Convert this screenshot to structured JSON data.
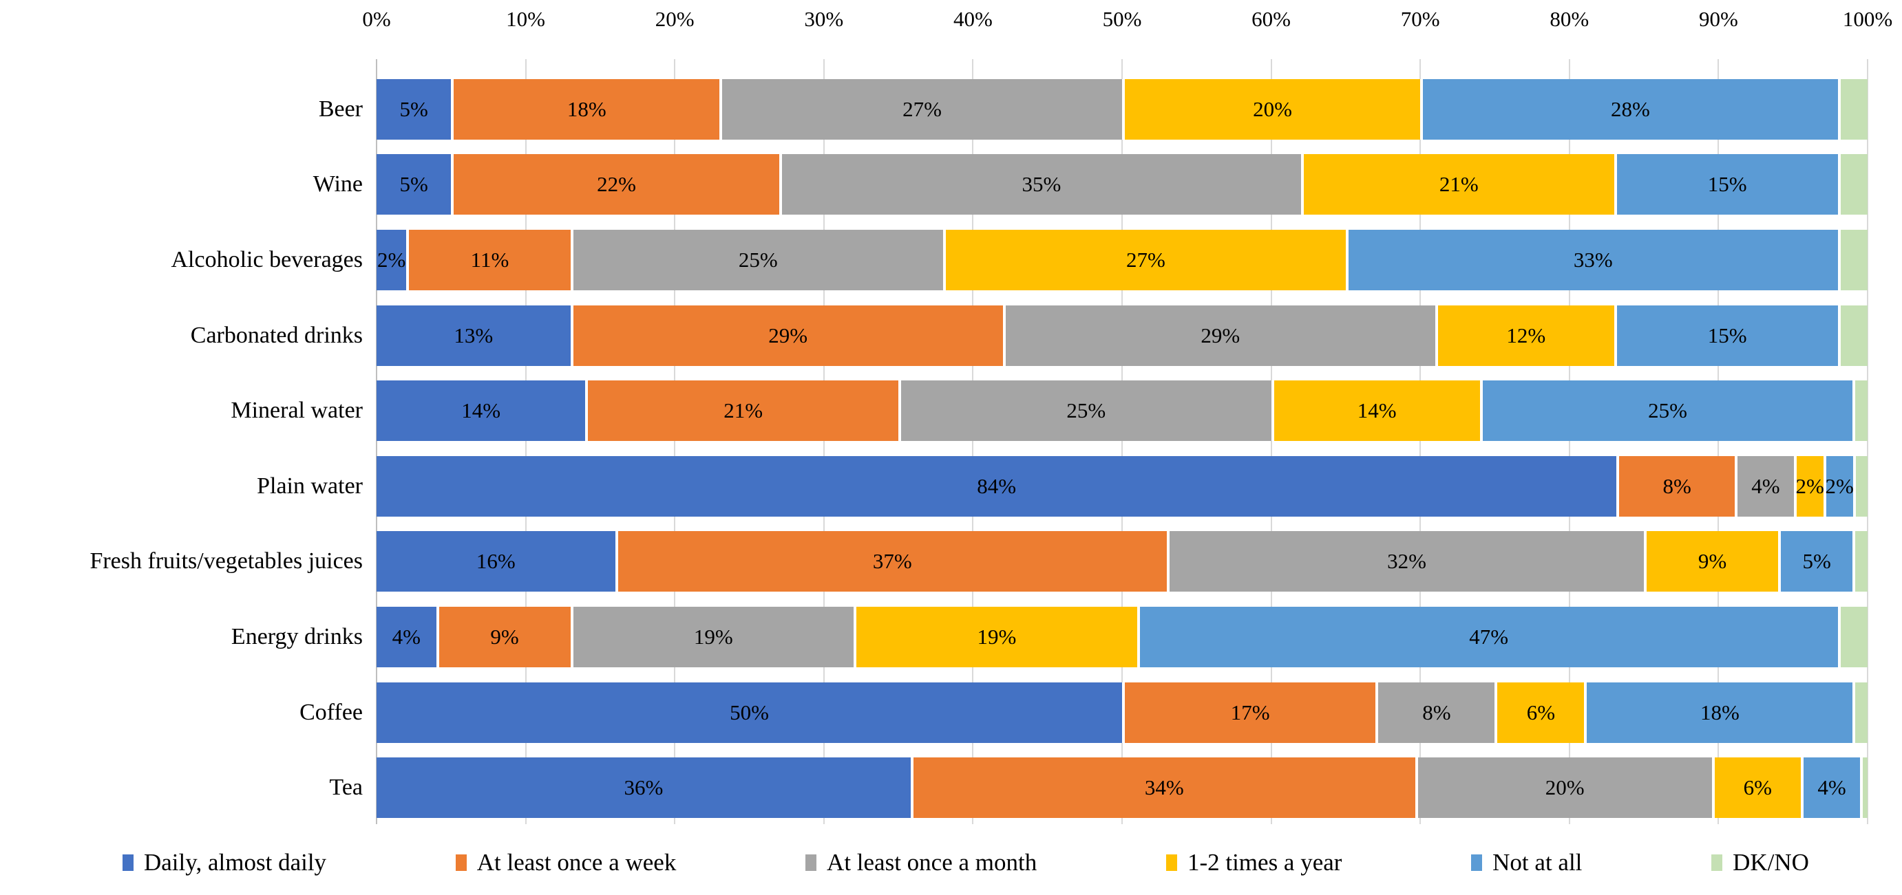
{
  "chart_data": {
    "type": "bar",
    "stacked": true,
    "orientation": "horizontal",
    "title": "",
    "xlabel": "",
    "ylabel": "",
    "xlim": [
      0,
      100
    ],
    "grid": true,
    "legend_position": "bottom",
    "x_ticks": [
      "0%",
      "10%",
      "20%",
      "30%",
      "40%",
      "50%",
      "60%",
      "70%",
      "80%",
      "90%",
      "100%"
    ],
    "categories": [
      "Beer",
      "Wine",
      "Alcoholic beverages",
      "Carbonated drinks",
      "Mineral water",
      "Plain water",
      "Fresh fruits/vegetables juices",
      "Energy drinks",
      "Coffee",
      "Tea"
    ],
    "series": [
      {
        "name": "Daily, almost daily",
        "color": "#4472C4",
        "data_labels": true,
        "values": [
          5,
          5,
          2,
          13,
          14,
          84,
          16,
          4,
          50,
          36
        ]
      },
      {
        "name": "At least once a week",
        "color": "#ED7D31",
        "data_labels": true,
        "values": [
          18,
          22,
          11,
          29,
          21,
          8,
          37,
          9,
          17,
          34
        ]
      },
      {
        "name": "At least once a month",
        "color": "#A5A5A5",
        "data_labels": true,
        "values": [
          27,
          35,
          25,
          29,
          25,
          4,
          32,
          19,
          8,
          20
        ]
      },
      {
        "name": "1-2 times a year",
        "color": "#FFC000",
        "data_labels": true,
        "values": [
          20,
          21,
          27,
          12,
          14,
          2,
          9,
          19,
          6,
          6
        ]
      },
      {
        "name": "Not at all",
        "color": "#5B9BD5",
        "data_labels": true,
        "values": [
          28,
          15,
          33,
          15,
          25,
          2,
          5,
          47,
          18,
          4
        ]
      },
      {
        "name": "DK/NO",
        "color": "#C5E0B4",
        "data_labels": false,
        "values": [
          2,
          2,
          2,
          2,
          1,
          1,
          1,
          2,
          1,
          0.5
        ]
      }
    ],
    "data_label_suffix": "%",
    "colors": {
      "gridline": "#D9D9D9",
      "axis_line": "#BFBFBF",
      "label_text": "#000000",
      "background": "#ffffff"
    }
  }
}
